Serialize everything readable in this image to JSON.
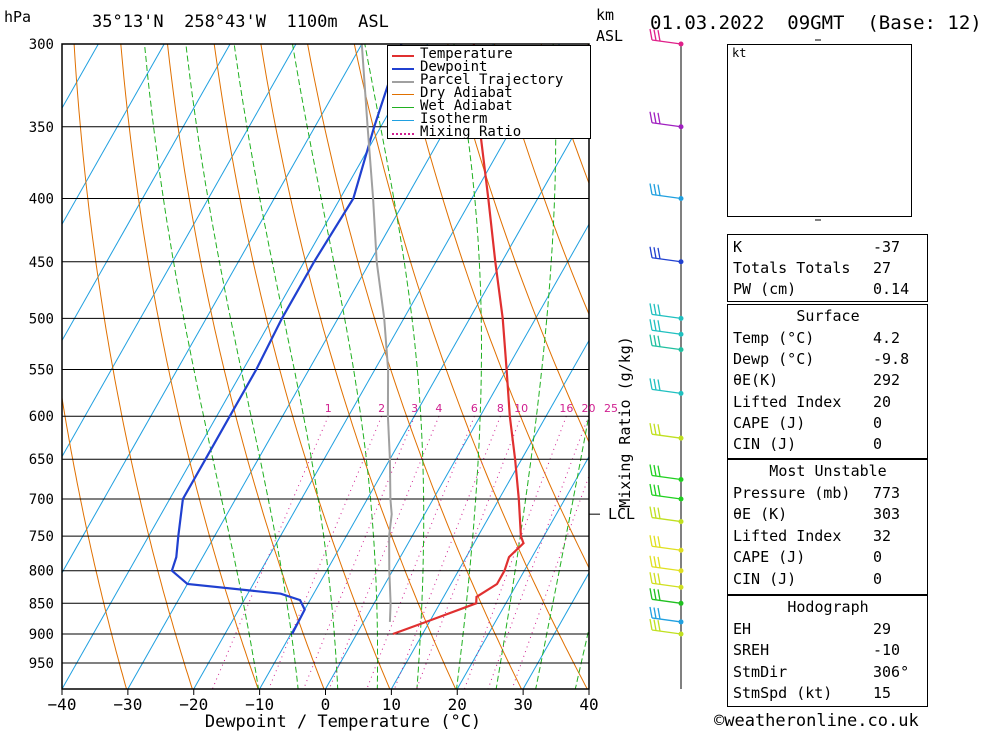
{
  "header": {
    "pressure_unit": "hPa",
    "location": "35°13'N  258°43'W  1100m  ASL",
    "km_label": "km",
    "asl_label": "ASL",
    "datetime": "01.03.2022  09GMT  (Base: 12)"
  },
  "legend": {
    "items": [
      {
        "label": "Temperature",
        "color": "#e03030",
        "style": "solid"
      },
      {
        "label": "Dewpoint",
        "color": "#2040d0",
        "style": "solid"
      },
      {
        "label": "Parcel Trajectory",
        "color": "#a0a0a0",
        "style": "solid"
      },
      {
        "label": "Dry Adiabat",
        "color": "#e07000",
        "style": "solid"
      },
      {
        "label": "Wet Adiabat",
        "color": "#20b020",
        "style": "solid"
      },
      {
        "label": "Isotherm",
        "color": "#20a0e0",
        "style": "solid"
      },
      {
        "label": "Mixing Ratio",
        "color": "#d02090",
        "style": "dotted"
      }
    ]
  },
  "chart_data": {
    "type": "line",
    "title": "35°13'N  258°43'W  1100m  ASL",
    "xlabel": "Dewpoint / Temperature (°C)",
    "ylabel": "hPa",
    "xlim": [
      -40,
      40
    ],
    "x_ticks": [
      -40,
      -30,
      -20,
      -10,
      0,
      10,
      20,
      30,
      40
    ],
    "pressure_levels": [
      300,
      350,
      400,
      450,
      500,
      550,
      600,
      650,
      700,
      750,
      800,
      850,
      900,
      950
    ],
    "mixing_ratio_label": "Mixing Ratio (g/kg)",
    "mixing_ratio_values": [
      1,
      2,
      3,
      4,
      6,
      8,
      10,
      16,
      20,
      25
    ],
    "lcl_label": "LCL",
    "lcl_pressure": 720,
    "series": [
      {
        "name": "Temperature",
        "color": "#e03030",
        "points": [
          [
            900,
            5.5
          ],
          [
            880,
            9.5
          ],
          [
            850,
            15.5
          ],
          [
            840,
            15.0
          ],
          [
            820,
            17.0
          ],
          [
            800,
            17.0
          ],
          [
            780,
            16.5
          ],
          [
            760,
            17.5
          ],
          [
            750,
            16.5
          ],
          [
            700,
            13.0
          ],
          [
            650,
            9.0
          ],
          [
            600,
            4.5
          ],
          [
            550,
            0.0
          ],
          [
            500,
            -5.0
          ],
          [
            450,
            -11.0
          ],
          [
            400,
            -17.5
          ],
          [
            350,
            -25.0
          ],
          [
            300,
            -33.0
          ]
        ]
      },
      {
        "name": "Dewpoint",
        "color": "#2040d0",
        "points": [
          [
            900,
            -9.8
          ],
          [
            860,
            -10.0
          ],
          [
            845,
            -11.5
          ],
          [
            835,
            -15.0
          ],
          [
            820,
            -30.0
          ],
          [
            800,
            -33.5
          ],
          [
            780,
            -34.0
          ],
          [
            750,
            -35.5
          ],
          [
            700,
            -38.0
          ],
          [
            650,
            -38.0
          ],
          [
            600,
            -38.0
          ],
          [
            550,
            -38.0
          ],
          [
            500,
            -38.5
          ],
          [
            450,
            -38.5
          ],
          [
            400,
            -38.0
          ],
          [
            350,
            -41.0
          ],
          [
            300,
            -44.0
          ]
        ]
      },
      {
        "name": "Parcel Trajectory",
        "color": "#a0a0a0",
        "points": [
          [
            880,
            4.0
          ],
          [
            850,
            2.5
          ],
          [
            800,
            -0.5
          ],
          [
            750,
            -3.5
          ],
          [
            720,
            -5.0
          ],
          [
            700,
            -6.5
          ],
          [
            650,
            -10.0
          ],
          [
            600,
            -14.0
          ],
          [
            550,
            -18.0
          ],
          [
            500,
            -23.0
          ],
          [
            450,
            -29.0
          ],
          [
            400,
            -35.0
          ],
          [
            350,
            -42.0
          ],
          [
            300,
            -50.0
          ]
        ]
      }
    ]
  },
  "wind_profile": {
    "barbs": [
      {
        "p": 300,
        "color": "#e0208a"
      },
      {
        "p": 350,
        "color": "#a020c0"
      },
      {
        "p": 400,
        "color": "#20a0e0"
      },
      {
        "p": 450,
        "color": "#2040d0"
      },
      {
        "p": 500,
        "color": "#20c0c0"
      },
      {
        "p": 515,
        "color": "#20c0c0"
      },
      {
        "p": 530,
        "color": "#20c0a0"
      },
      {
        "p": 575,
        "color": "#20c0c0"
      },
      {
        "p": 625,
        "color": "#c0e020"
      },
      {
        "p": 675,
        "color": "#20d020"
      },
      {
        "p": 700,
        "color": "#20d020"
      },
      {
        "p": 730,
        "color": "#c0e020"
      },
      {
        "p": 770,
        "color": "#e0e020"
      },
      {
        "p": 800,
        "color": "#e0e020"
      },
      {
        "p": 825,
        "color": "#d0e020"
      },
      {
        "p": 850,
        "color": "#20c020"
      },
      {
        "p": 880,
        "color": "#20a0e0"
      },
      {
        "p": 900,
        "color": "#c0e020"
      }
    ]
  },
  "hodograph": {
    "unit": "kt",
    "rings": [
      "25",
      "50",
      "75"
    ]
  },
  "indices": {
    "rows": [
      {
        "label": "K",
        "value": "-37"
      },
      {
        "label": "Totals Totals",
        "value": "27"
      },
      {
        "label": "PW (cm)",
        "value": "0.14"
      }
    ]
  },
  "surface": {
    "title": "Surface",
    "rows": [
      {
        "label": "Temp (°C)",
        "value": "4.2"
      },
      {
        "label": "Dewp (°C)",
        "value": "-9.8"
      },
      {
        "label": "θE(K)",
        "value": "292"
      },
      {
        "label": "Lifted Index",
        "value": "20"
      },
      {
        "label": "CAPE (J)",
        "value": "0"
      },
      {
        "label": "CIN (J)",
        "value": "0"
      }
    ]
  },
  "most_unstable": {
    "title": "Most Unstable",
    "rows": [
      {
        "label": "Pressure (mb)",
        "value": "773"
      },
      {
        "label": "θE (K)",
        "value": "303"
      },
      {
        "label": "Lifted Index",
        "value": "32"
      },
      {
        "label": "CAPE (J)",
        "value": "0"
      },
      {
        "label": "CIN (J)",
        "value": "0"
      }
    ]
  },
  "hodograph_table": {
    "title": "Hodograph",
    "rows": [
      {
        "label": "EH",
        "value": "29"
      },
      {
        "label": "SREH",
        "value": "-10"
      },
      {
        "label": "StmDir",
        "value": "306°"
      },
      {
        "label": "StmSpd (kt)",
        "value": "15"
      }
    ]
  },
  "footer": {
    "credit": "©weatheronline.co.uk"
  }
}
